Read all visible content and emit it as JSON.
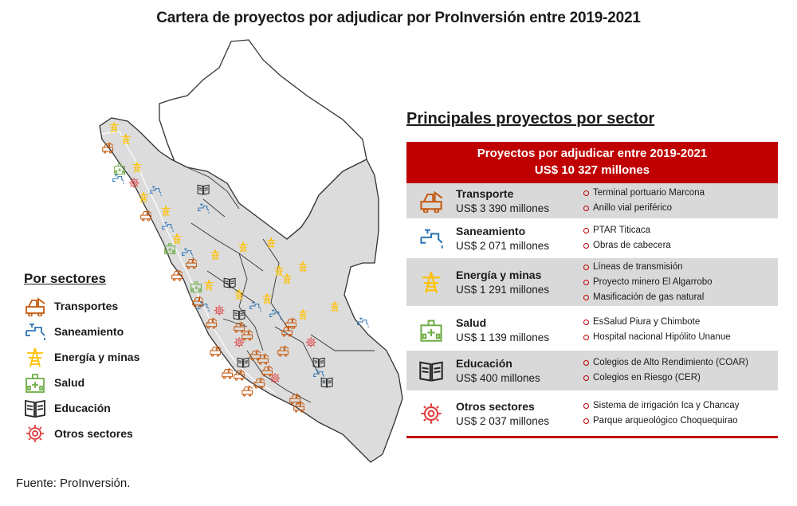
{
  "title": "Cartera de proyectos por adjudicar por ProInversión entre 2019-2021",
  "legend": {
    "title": "Por sectores",
    "items": [
      {
        "label": "Transportes",
        "icon": "transport-icon",
        "color": "#c55a11"
      },
      {
        "label": "Saneamiento",
        "icon": "water-tap-icon",
        "color": "#2e75b6"
      },
      {
        "label": "Energía y minas",
        "icon": "power-tower-icon",
        "color": "#ffc000"
      },
      {
        "label": "Salud",
        "icon": "hospital-icon",
        "color": "#70ad47"
      },
      {
        "label": "Educación",
        "icon": "book-icon",
        "color": "#262626"
      },
      {
        "label": "Otros sectores",
        "icon": "other-sectors-icon",
        "color": "#e03c3c"
      }
    ]
  },
  "panel": {
    "title": "Principales proyectos por sector",
    "banner_line1": "Proyectos por adjudicar entre 2019-2021",
    "banner_line2": "US$ 10 327 millones",
    "rows": [
      {
        "sector": "Transporte",
        "amount": "US$ 3 390 millones",
        "icon": "transport-icon",
        "projects": [
          "Terminal portuario Marcona",
          "Anillo vial periférico"
        ]
      },
      {
        "sector": "Saneamiento",
        "amount": "US$ 2 071 millones",
        "icon": "water-tap-icon",
        "projects": [
          "PTAR Titicaca",
          "Obras de cabecera"
        ]
      },
      {
        "sector": "Energía y minas",
        "amount": "US$ 1 291 millones",
        "icon": "power-tower-icon",
        "projects": [
          "Líneas de transmisión",
          "Proyecto minero El Algarrobo",
          "Masificación de gas natural"
        ]
      },
      {
        "sector": "Salud",
        "amount": "US$ 1 139 millones",
        "icon": "hospital-icon",
        "projects": [
          "EsSalud Piura y Chimbote",
          "Hospital nacional Hipólito Unanue"
        ]
      },
      {
        "sector": "Educación",
        "amount": "US$ 400 millones",
        "icon": "book-icon",
        "projects": [
          "Colegios de Alto Rendimiento (COAR)",
          "Colegios en Riesgo (CER)"
        ]
      },
      {
        "sector": "Otros sectores",
        "amount": "US$ 2 037 millones",
        "icon": "other-sectors-icon",
        "projects": [
          "Sistema de irrigación Ica y Chancay",
          "Parque arqueológico Choquequirao"
        ]
      }
    ]
  },
  "map": {
    "markers": [
      {
        "sector": "energy",
        "region": "Tumbes"
      },
      {
        "sector": "energy",
        "region": "Tumbes"
      },
      {
        "sector": "transport",
        "region": "Piura"
      },
      {
        "sector": "health",
        "region": "Piura"
      },
      {
        "sector": "energy",
        "region": "Piura"
      },
      {
        "sector": "water",
        "region": "Piura"
      },
      {
        "sector": "other",
        "region": "Piura"
      },
      {
        "sector": "energy",
        "region": "Lambayeque"
      },
      {
        "sector": "water",
        "region": "Lambayeque"
      },
      {
        "sector": "transport",
        "region": "Lambayeque"
      },
      {
        "sector": "energy",
        "region": "Cajamarca"
      },
      {
        "sector": "water",
        "region": "Cajamarca"
      },
      {
        "sector": "education",
        "region": "Amazonas"
      },
      {
        "sector": "water",
        "region": "Amazonas"
      },
      {
        "sector": "energy",
        "region": "La Libertad"
      },
      {
        "sector": "water",
        "region": "La Libertad"
      },
      {
        "sector": "health",
        "region": "La Libertad"
      },
      {
        "sector": "energy",
        "region": "San Martín"
      },
      {
        "sector": "transport",
        "region": "San Martín"
      },
      {
        "sector": "energy",
        "region": "Loreto"
      },
      {
        "sector": "energy",
        "region": "Loreto"
      },
      {
        "sector": "transport",
        "region": "Ancash"
      },
      {
        "sector": "health",
        "region": "Ancash"
      },
      {
        "sector": "energy",
        "region": "Ancash"
      },
      {
        "sector": "water",
        "region": "Ancash"
      },
      {
        "sector": "education",
        "region": "Huánuco"
      },
      {
        "sector": "energy",
        "region": "Huánuco"
      },
      {
        "sector": "transport",
        "region": "Lima"
      },
      {
        "sector": "other",
        "region": "Lima"
      },
      {
        "sector": "education",
        "region": "Lima"
      },
      {
        "sector": "water",
        "region": "Lima"
      },
      {
        "sector": "transport",
        "region": "Lima"
      },
      {
        "sector": "transport",
        "region": "Pasco"
      },
      {
        "sector": "energy",
        "region": "Junín"
      },
      {
        "sector": "transport",
        "region": "Junín"
      },
      {
        "sector": "water",
        "region": "Junín"
      },
      {
        "sector": "energy",
        "region": "Ucayali"
      },
      {
        "sector": "water",
        "region": "Ucayali"
      },
      {
        "sector": "energy",
        "region": "Ucayali"
      },
      {
        "sector": "transport",
        "region": "Ica"
      },
      {
        "sector": "other",
        "region": "Ica"
      },
      {
        "sector": "transport",
        "region": "Ica"
      },
      {
        "sector": "transport",
        "region": "Huancavelica"
      },
      {
        "sector": "education",
        "region": "Huancavelica"
      },
      {
        "sector": "transport",
        "region": "Ayacucho"
      },
      {
        "sector": "other",
        "region": "Ayacucho"
      },
      {
        "sector": "transport",
        "region": "Ayacucho"
      },
      {
        "sector": "transport",
        "region": "Cusco"
      },
      {
        "sector": "other",
        "region": "Cusco"
      },
      {
        "sector": "transport",
        "region": "Cusco"
      },
      {
        "sector": "energy",
        "region": "Cusco"
      },
      {
        "sector": "energy",
        "region": "Madre de Dios"
      },
      {
        "sector": "transport",
        "region": "Apurímac"
      },
      {
        "sector": "transport",
        "region": "Apurímac"
      },
      {
        "sector": "transport",
        "region": "Arequipa"
      },
      {
        "sector": "transport",
        "region": "Arequipa"
      },
      {
        "sector": "education",
        "region": "Puno"
      },
      {
        "sector": "education",
        "region": "Puno"
      },
      {
        "sector": "water",
        "region": "Puno"
      },
      {
        "sector": "transport",
        "region": "Moquegua"
      },
      {
        "sector": "transport",
        "region": "Tacna"
      },
      {
        "sector": "energy",
        "region": "Loreto"
      }
    ]
  },
  "source": "Fuente: ProInversión."
}
